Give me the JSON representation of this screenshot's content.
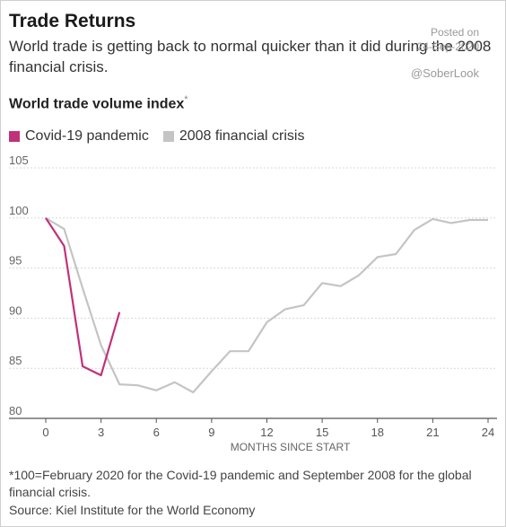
{
  "header": {
    "title": "Trade Returns",
    "subtitle": "World trade is getting back to normal quicker than it did during the 2008 financial crisis."
  },
  "watermark": {
    "posted": "Posted on",
    "date": "24-Sep-2020",
    "handle": "@SoberLook"
  },
  "chart_data": {
    "type": "line",
    "title": "World trade volume index",
    "title_marker": "*",
    "xlabel": "MONTHS SINCE START",
    "ylabel": "",
    "xlim": [
      0,
      24
    ],
    "ylim": [
      80,
      105
    ],
    "x_ticks": [
      0,
      3,
      6,
      9,
      12,
      15,
      18,
      21,
      24
    ],
    "y_ticks": [
      80,
      85,
      90,
      95,
      100,
      105
    ],
    "grid": "horizontal",
    "legend_position": "top-left",
    "series": [
      {
        "name": "Covid-19 pandemic",
        "color": "#c0317a",
        "x": [
          0,
          1,
          2,
          3,
          4
        ],
        "values": [
          100,
          97.2,
          85.2,
          84.3,
          90.6
        ]
      },
      {
        "name": "2008 financial crisis",
        "color": "#c4c4c4",
        "x": [
          0,
          1,
          2,
          3,
          4,
          5,
          6,
          7,
          8,
          9,
          10,
          11,
          12,
          13,
          14,
          15,
          16,
          17,
          18,
          19,
          20,
          21,
          22,
          23,
          24
        ],
        "values": [
          100,
          98.9,
          93.0,
          87.3,
          83.4,
          83.3,
          82.8,
          83.6,
          82.6,
          84.7,
          86.7,
          86.7,
          89.6,
          90.9,
          91.3,
          93.5,
          93.2,
          94.3,
          96.1,
          96.4,
          98.8,
          99.9,
          99.5,
          99.8,
          99.8
        ]
      }
    ]
  },
  "footnote": "*100=February 2020 for the Covid-19 pandemic and September 2008 for the global financial crisis.",
  "source": "Source: Kiel Institute for the World Economy"
}
